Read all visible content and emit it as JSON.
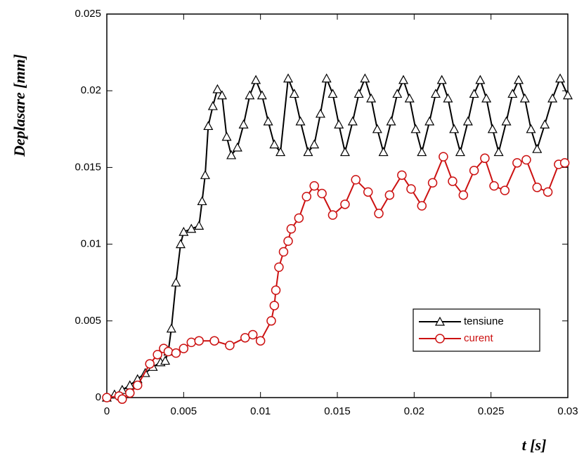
{
  "chart_data": {
    "type": "line",
    "xlabel": "t [s]",
    "ylabel": "Deplasare [mm]",
    "xlim": [
      0,
      0.03
    ],
    "xticks": [
      0,
      0.005,
      0.01,
      0.015,
      0.02,
      0.025,
      0.03
    ],
    "ylim": [
      0,
      0.025
    ],
    "yticks": [
      0,
      0.005,
      0.01,
      0.015,
      0.02,
      0.025
    ],
    "legend": "lower right",
    "series": [
      {
        "name": "tensiune",
        "color": "#000000",
        "marker": "triangle",
        "x": [
          0,
          0.0005,
          0.001,
          0.0015,
          0.002,
          0.0025,
          0.003,
          0.0035,
          0.0038,
          0.004,
          0.0042,
          0.0045,
          0.0048,
          0.005,
          0.0055,
          0.006,
          0.0062,
          0.0064,
          0.0066,
          0.0069,
          0.0072,
          0.0075,
          0.0078,
          0.0081,
          0.0085,
          0.0089,
          0.0093,
          0.0097,
          0.0101,
          0.0105,
          0.0109,
          0.0113,
          0.0118,
          0.0122,
          0.0126,
          0.0131,
          0.0135,
          0.0139,
          0.0143,
          0.0147,
          0.0151,
          0.0155,
          0.016,
          0.0164,
          0.0168,
          0.0172,
          0.0176,
          0.018,
          0.0185,
          0.0189,
          0.0193,
          0.0197,
          0.0201,
          0.0205,
          0.021,
          0.0214,
          0.0218,
          0.0222,
          0.0226,
          0.023,
          0.0235,
          0.0239,
          0.0243,
          0.0247,
          0.0251,
          0.0255,
          0.026,
          0.0264,
          0.0268,
          0.0272,
          0.0276,
          0.028,
          0.0285,
          0.029,
          0.0295,
          0.03
        ],
        "values": [
          0,
          0.0002,
          0.0005,
          0.0008,
          0.0012,
          0.0016,
          0.002,
          0.0023,
          0.0024,
          0.003,
          0.0045,
          0.0075,
          0.01,
          0.0108,
          0.011,
          0.0112,
          0.0128,
          0.0145,
          0.0177,
          0.019,
          0.0201,
          0.0197,
          0.017,
          0.0158,
          0.0163,
          0.0178,
          0.0197,
          0.0207,
          0.0197,
          0.018,
          0.0165,
          0.016,
          0.0208,
          0.0198,
          0.018,
          0.016,
          0.0165,
          0.0185,
          0.0208,
          0.0198,
          0.0178,
          0.016,
          0.018,
          0.0198,
          0.0208,
          0.0195,
          0.0175,
          0.016,
          0.018,
          0.0198,
          0.0207,
          0.0195,
          0.0175,
          0.016,
          0.018,
          0.0198,
          0.0207,
          0.0195,
          0.0175,
          0.016,
          0.018,
          0.0198,
          0.0207,
          0.0195,
          0.0175,
          0.016,
          0.018,
          0.0198,
          0.0207,
          0.0195,
          0.0175,
          0.0162,
          0.0178,
          0.0195,
          0.0208,
          0.0197
        ]
      },
      {
        "name": "curent",
        "color": "#cc1111",
        "marker": "circle",
        "x": [
          0,
          0.0008,
          0.001,
          0.0015,
          0.002,
          0.0028,
          0.0033,
          0.0037,
          0.004,
          0.0045,
          0.005,
          0.0055,
          0.006,
          0.007,
          0.008,
          0.009,
          0.0095,
          0.01,
          0.0107,
          0.0109,
          0.011,
          0.0112,
          0.0115,
          0.0118,
          0.012,
          0.0125,
          0.013,
          0.0135,
          0.014,
          0.0147,
          0.0155,
          0.0162,
          0.017,
          0.0177,
          0.0184,
          0.0192,
          0.0198,
          0.0205,
          0.0212,
          0.0219,
          0.0225,
          0.0232,
          0.0239,
          0.0246,
          0.0252,
          0.0259,
          0.0267,
          0.0273,
          0.028,
          0.0287,
          0.0294,
          0.0298
        ],
        "values": [
          0,
          0.0001,
          -0.0001,
          0.0003,
          0.0008,
          0.0022,
          0.0028,
          0.0032,
          0.003,
          0.0029,
          0.0032,
          0.0036,
          0.0037,
          0.0037,
          0.0034,
          0.0039,
          0.0041,
          0.0037,
          0.005,
          0.006,
          0.007,
          0.0085,
          0.0095,
          0.0102,
          0.011,
          0.0117,
          0.0131,
          0.0138,
          0.0133,
          0.0119,
          0.0126,
          0.0142,
          0.0134,
          0.012,
          0.0132,
          0.0145,
          0.0136,
          0.0125,
          0.014,
          0.0157,
          0.0141,
          0.0132,
          0.0148,
          0.0156,
          0.0138,
          0.0135,
          0.0153,
          0.0155,
          0.0137,
          0.0134,
          0.0152,
          0.0153
        ]
      }
    ]
  }
}
